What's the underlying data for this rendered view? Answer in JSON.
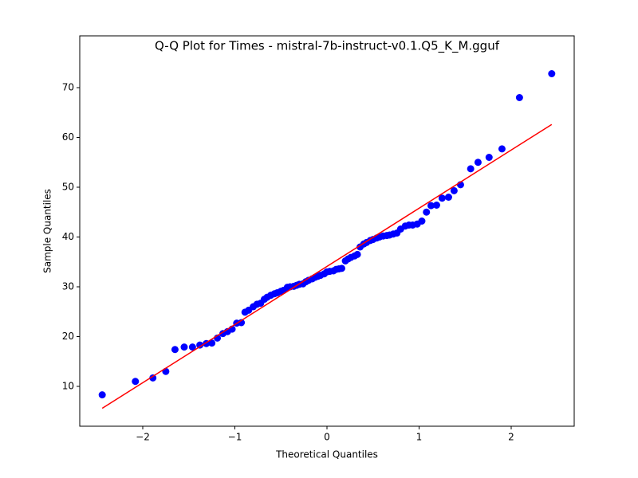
{
  "chart_data": {
    "type": "scatter",
    "title": "Q-Q Plot for Times - mistral-7b-instruct-v0.1.Q5_K_M.gguf",
    "x_label": "Theoretical Quantiles",
    "y_label": "Sample Quantiles",
    "xlim": [
      -2.684,
      2.684
    ],
    "ylim": [
      2.0,
      80.4
    ],
    "xticks": [
      {
        "value": -2,
        "label": "−2"
      },
      {
        "value": -1,
        "label": "−1"
      },
      0,
      1,
      2
    ],
    "yticks": [
      10,
      20,
      30,
      40,
      50,
      60,
      70
    ],
    "x": [
      -2.44,
      -2.08,
      -1.89,
      -1.75,
      -1.65,
      -1.55,
      -1.46,
      -1.38,
      -1.31,
      -1.25,
      -1.19,
      -1.13,
      -1.08,
      -1.03,
      -0.98,
      -0.93,
      -0.89,
      -0.85,
      -0.8,
      -0.76,
      -0.72,
      -0.68,
      -0.65,
      -0.61,
      -0.57,
      -0.54,
      -0.5,
      -0.47,
      -0.43,
      -0.4,
      -0.36,
      -0.33,
      -0.3,
      -0.26,
      -0.23,
      -0.2,
      -0.16,
      -0.13,
      -0.1,
      -0.07,
      -0.03,
      0.0,
      0.03,
      0.07,
      0.1,
      0.13,
      0.16,
      0.2,
      0.23,
      0.26,
      0.3,
      0.33,
      0.36,
      0.4,
      0.43,
      0.47,
      0.5,
      0.54,
      0.57,
      0.61,
      0.65,
      0.68,
      0.72,
      0.76,
      0.8,
      0.85,
      0.89,
      0.93,
      0.98,
      1.03,
      1.08,
      1.13,
      1.19,
      1.25,
      1.32,
      1.38,
      1.45,
      1.56,
      1.64,
      1.76,
      1.9,
      2.09,
      2.44
    ],
    "series": [
      {
        "color": "#0000ff",
        "values": [
          8.3,
          11.0,
          11.7,
          13.0,
          17.4,
          17.9,
          17.9,
          18.3,
          18.6,
          18.7,
          19.7,
          20.6,
          21.0,
          21.5,
          22.7,
          22.8,
          24.9,
          25.3,
          26.0,
          26.5,
          26.7,
          27.5,
          27.9,
          28.3,
          28.6,
          28.8,
          29.1,
          29.3,
          29.9,
          30.0,
          30.1,
          30.3,
          30.5,
          30.6,
          31.0,
          31.3,
          31.6,
          31.9,
          32.1,
          32.3,
          32.6,
          33.0,
          33.1,
          33.2,
          33.5,
          33.6,
          33.7,
          35.2,
          35.6,
          35.9,
          36.2,
          36.5,
          38.0,
          38.6,
          38.9,
          39.3,
          39.5,
          39.8,
          40.0,
          40.2,
          40.3,
          40.4,
          40.6,
          40.8,
          41.6,
          42.2,
          42.4,
          42.4,
          42.6,
          43.2,
          45.0,
          46.3,
          46.4,
          47.8,
          48.0,
          49.3,
          50.5,
          53.7,
          55.0,
          56.0,
          57.7,
          68.0,
          72.8
        ]
      }
    ],
    "fit_line": {
      "color": "#ff0000",
      "x": [
        -2.44,
        2.44
      ],
      "values": [
        5.6,
        62.6
      ]
    }
  }
}
